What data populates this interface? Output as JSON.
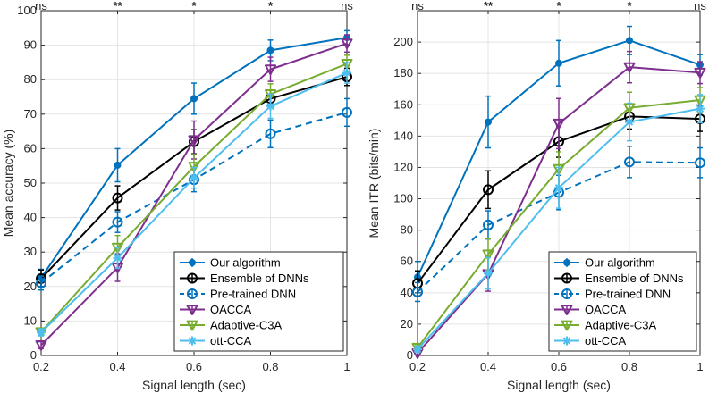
{
  "chart_data": [
    {
      "type": "line",
      "xlabel": "Signal length (sec)",
      "ylabel": "Mean accuracy (%)",
      "xlim": [
        0.2,
        1
      ],
      "ylim": [
        0,
        100
      ],
      "x": [
        0.2,
        0.4,
        0.6,
        0.8,
        1
      ],
      "x_tick_labels": [
        "0.2",
        "0.4",
        "0.6",
        "0.8",
        "1"
      ],
      "y_ticks": [
        0,
        10,
        20,
        30,
        40,
        50,
        60,
        70,
        80,
        90,
        100
      ],
      "significance": [
        "ns",
        "**",
        "*",
        "*",
        "ns"
      ],
      "grid": true,
      "legend_position": "bottom-right",
      "series": [
        {
          "name": "Our algorithm",
          "color": "#0072BD",
          "marker": "dot",
          "dashed": false,
          "values": [
            22.5,
            55.2,
            74.5,
            88.5,
            92.2
          ],
          "errors": [
            2.5,
            4.8,
            4.5,
            3.0,
            2.0
          ]
        },
        {
          "name": "Ensemble of DNNs",
          "color": "#000000",
          "marker": "circle",
          "dashed": false,
          "values": [
            22.3,
            45.7,
            62.0,
            74.5,
            80.8
          ],
          "errors": [
            2.5,
            3.5,
            3.5,
            2.5,
            2.5
          ]
        },
        {
          "name": "Pre-trained DNN",
          "color": "#0072BD",
          "marker": "circle",
          "dashed": true,
          "values": [
            21.0,
            38.7,
            51.0,
            64.3,
            70.5
          ],
          "errors": [
            2.0,
            3.0,
            3.5,
            4.0,
            4.0
          ]
        },
        {
          "name": "OACCA",
          "color": "#7E2F8E",
          "marker": "tri-down",
          "dashed": false,
          "values": [
            3.0,
            25.5,
            62.5,
            83.0,
            90.5
          ],
          "errors": [
            1.0,
            4.0,
            5.5,
            3.5,
            2.5
          ]
        },
        {
          "name": "Adaptive-C3A",
          "color": "#77AC30",
          "marker": "tri-down",
          "dashed": false,
          "values": [
            6.8,
            31.3,
            54.8,
            75.8,
            84.6
          ],
          "errors": [
            1.0,
            3.5,
            3.5,
            3.0,
            2.5
          ]
        },
        {
          "name": "ott-CCA",
          "color": "#4DBEEE",
          "marker": "star",
          "dashed": false,
          "values": [
            6.7,
            28.3,
            51.5,
            72.3,
            82.0
          ],
          "errors": [
            1.0,
            3.0,
            3.0,
            3.5,
            3.0
          ]
        }
      ]
    },
    {
      "type": "line",
      "xlabel": "Signal length (sec)",
      "ylabel": "Mean ITR (bits/min)",
      "xlim": [
        0.2,
        1
      ],
      "ylim": [
        0,
        220
      ],
      "x": [
        0.2,
        0.4,
        0.6,
        0.8,
        1
      ],
      "x_tick_labels": [
        "0.2",
        "0.4",
        "0.6",
        "0.8",
        "1"
      ],
      "y_ticks": [
        0,
        20,
        40,
        60,
        80,
        100,
        120,
        140,
        160,
        180,
        200
      ],
      "significance": [
        "ns",
        "**",
        "*",
        "*",
        "ns"
      ],
      "grid": true,
      "legend_position": "bottom-right",
      "series": [
        {
          "name": "Our algorithm",
          "color": "#0072BD",
          "marker": "dot",
          "dashed": false,
          "values": [
            50.0,
            149.0,
            186.5,
            201.0,
            185.5
          ],
          "errors": [
            10.0,
            16.5,
            14.5,
            9.0,
            6.5
          ]
        },
        {
          "name": "Ensemble of DNNs",
          "color": "#000000",
          "marker": "circle",
          "dashed": false,
          "values": [
            46.0,
            105.8,
            136.5,
            152.5,
            151.0
          ],
          "errors": [
            8.0,
            12.0,
            10.0,
            8.0,
            8.0
          ]
        },
        {
          "name": "Pre-trained DNN",
          "color": "#0072BD",
          "marker": "circle",
          "dashed": true,
          "values": [
            40.5,
            83.3,
            104.0,
            123.5,
            123.0
          ],
          "errors": [
            6.0,
            9.0,
            11.0,
            10.0,
            9.5
          ]
        },
        {
          "name": "OACCA",
          "color": "#7E2F8E",
          "marker": "tri-down",
          "dashed": false,
          "values": [
            1.5,
            52.0,
            148.0,
            184.0,
            180.5
          ],
          "errors": [
            1.0,
            11.0,
            16.0,
            10.0,
            7.0
          ]
        },
        {
          "name": "Adaptive-C3A",
          "color": "#77AC30",
          "marker": "tri-down",
          "dashed": false,
          "values": [
            5.0,
            64.5,
            119.0,
            158.0,
            163.0
          ],
          "errors": [
            2.0,
            10.0,
            11.0,
            10.0,
            8.0
          ]
        },
        {
          "name": "ott-CCA",
          "color": "#4DBEEE",
          "marker": "star",
          "dashed": false,
          "values": [
            4.0,
            52.5,
            107.0,
            149.0,
            157.5
          ],
          "errors": [
            2.0,
            10.0,
            13.0,
            12.0,
            9.0
          ]
        }
      ]
    }
  ]
}
